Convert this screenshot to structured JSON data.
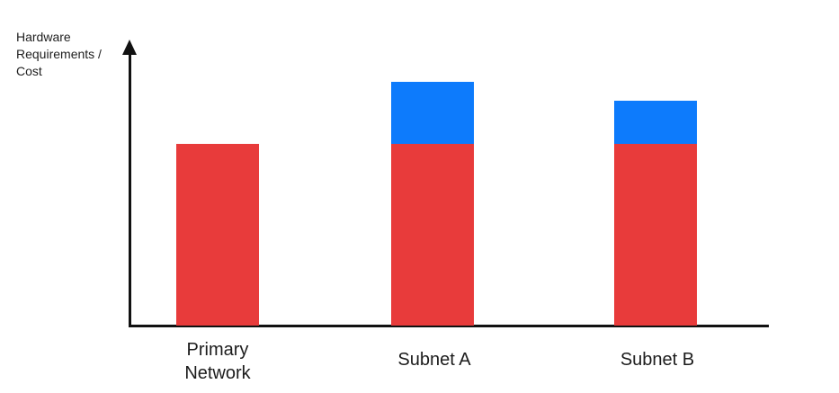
{
  "figure": {
    "background": "#ffffff",
    "axis_color": "#111111",
    "text_color": "#1e1e1e"
  },
  "chart_data": {
    "type": "bar",
    "stacked": true,
    "title": "",
    "xlabel": "",
    "ylabel": "Hardware Requirements / Cost",
    "axis_numeric": false,
    "grid": false,
    "legend": false,
    "categories": [
      "Primary Network",
      "Subnet A",
      "Subnet B"
    ],
    "series": [
      {
        "name": "red-segment",
        "color": "#E83B3B",
        "values": [
          100,
          100,
          100
        ]
      },
      {
        "name": "blue-segment",
        "color": "#0D7BFC",
        "values": [
          0,
          34,
          24
        ]
      }
    ],
    "ylim_units": [
      0,
      160
    ],
    "notes": "No numeric axis shown; values are relative units where the red base of every bar equals 100."
  }
}
